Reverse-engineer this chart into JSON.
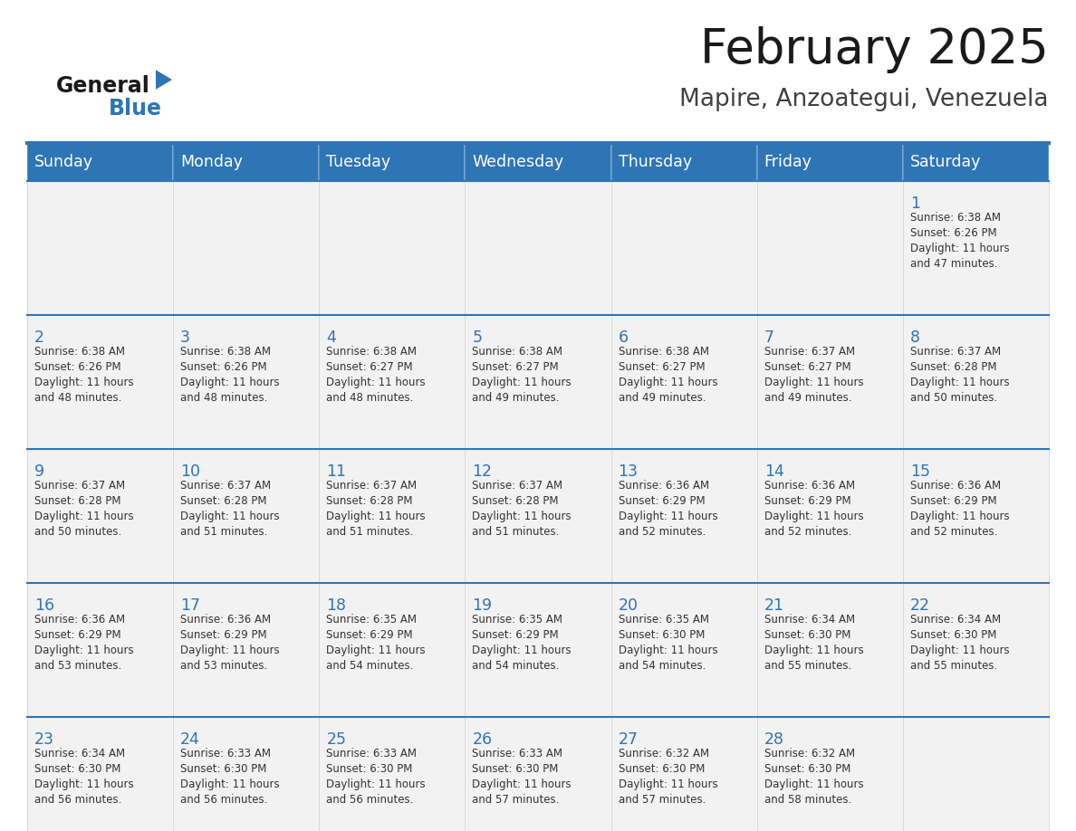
{
  "title": "February 2025",
  "subtitle": "Mapire, Anzoategui, Venezuela",
  "header_bg": "#2E75B6",
  "header_text_color": "#FFFFFF",
  "cell_bg": "#F2F2F2",
  "border_color": "#2E75B6",
  "day_headers": [
    "Sunday",
    "Monday",
    "Tuesday",
    "Wednesday",
    "Thursday",
    "Friday",
    "Saturday"
  ],
  "title_color": "#1a1a1a",
  "subtitle_color": "#404040",
  "day_number_color": "#2E75B6",
  "info_color": "#333333",
  "logo_general_color": "#1a1a1a",
  "logo_blue_color": "#2E75B6",
  "days": [
    {
      "day": 1,
      "col": 6,
      "row": 0,
      "sunrise": "6:38 AM",
      "sunset": "6:26 PM",
      "daylight_hours": 11,
      "daylight_minutes": 47
    },
    {
      "day": 2,
      "col": 0,
      "row": 1,
      "sunrise": "6:38 AM",
      "sunset": "6:26 PM",
      "daylight_hours": 11,
      "daylight_minutes": 48
    },
    {
      "day": 3,
      "col": 1,
      "row": 1,
      "sunrise": "6:38 AM",
      "sunset": "6:26 PM",
      "daylight_hours": 11,
      "daylight_minutes": 48
    },
    {
      "day": 4,
      "col": 2,
      "row": 1,
      "sunrise": "6:38 AM",
      "sunset": "6:27 PM",
      "daylight_hours": 11,
      "daylight_minutes": 48
    },
    {
      "day": 5,
      "col": 3,
      "row": 1,
      "sunrise": "6:38 AM",
      "sunset": "6:27 PM",
      "daylight_hours": 11,
      "daylight_minutes": 49
    },
    {
      "day": 6,
      "col": 4,
      "row": 1,
      "sunrise": "6:38 AM",
      "sunset": "6:27 PM",
      "daylight_hours": 11,
      "daylight_minutes": 49
    },
    {
      "day": 7,
      "col": 5,
      "row": 1,
      "sunrise": "6:37 AM",
      "sunset": "6:27 PM",
      "daylight_hours": 11,
      "daylight_minutes": 49
    },
    {
      "day": 8,
      "col": 6,
      "row": 1,
      "sunrise": "6:37 AM",
      "sunset": "6:28 PM",
      "daylight_hours": 11,
      "daylight_minutes": 50
    },
    {
      "day": 9,
      "col": 0,
      "row": 2,
      "sunrise": "6:37 AM",
      "sunset": "6:28 PM",
      "daylight_hours": 11,
      "daylight_minutes": 50
    },
    {
      "day": 10,
      "col": 1,
      "row": 2,
      "sunrise": "6:37 AM",
      "sunset": "6:28 PM",
      "daylight_hours": 11,
      "daylight_minutes": 51
    },
    {
      "day": 11,
      "col": 2,
      "row": 2,
      "sunrise": "6:37 AM",
      "sunset": "6:28 PM",
      "daylight_hours": 11,
      "daylight_minutes": 51
    },
    {
      "day": 12,
      "col": 3,
      "row": 2,
      "sunrise": "6:37 AM",
      "sunset": "6:28 PM",
      "daylight_hours": 11,
      "daylight_minutes": 51
    },
    {
      "day": 13,
      "col": 4,
      "row": 2,
      "sunrise": "6:36 AM",
      "sunset": "6:29 PM",
      "daylight_hours": 11,
      "daylight_minutes": 52
    },
    {
      "day": 14,
      "col": 5,
      "row": 2,
      "sunrise": "6:36 AM",
      "sunset": "6:29 PM",
      "daylight_hours": 11,
      "daylight_minutes": 52
    },
    {
      "day": 15,
      "col": 6,
      "row": 2,
      "sunrise": "6:36 AM",
      "sunset": "6:29 PM",
      "daylight_hours": 11,
      "daylight_minutes": 52
    },
    {
      "day": 16,
      "col": 0,
      "row": 3,
      "sunrise": "6:36 AM",
      "sunset": "6:29 PM",
      "daylight_hours": 11,
      "daylight_minutes": 53
    },
    {
      "day": 17,
      "col": 1,
      "row": 3,
      "sunrise": "6:36 AM",
      "sunset": "6:29 PM",
      "daylight_hours": 11,
      "daylight_minutes": 53
    },
    {
      "day": 18,
      "col": 2,
      "row": 3,
      "sunrise": "6:35 AM",
      "sunset": "6:29 PM",
      "daylight_hours": 11,
      "daylight_minutes": 54
    },
    {
      "day": 19,
      "col": 3,
      "row": 3,
      "sunrise": "6:35 AM",
      "sunset": "6:29 PM",
      "daylight_hours": 11,
      "daylight_minutes": 54
    },
    {
      "day": 20,
      "col": 4,
      "row": 3,
      "sunrise": "6:35 AM",
      "sunset": "6:30 PM",
      "daylight_hours": 11,
      "daylight_minutes": 54
    },
    {
      "day": 21,
      "col": 5,
      "row": 3,
      "sunrise": "6:34 AM",
      "sunset": "6:30 PM",
      "daylight_hours": 11,
      "daylight_minutes": 55
    },
    {
      "day": 22,
      "col": 6,
      "row": 3,
      "sunrise": "6:34 AM",
      "sunset": "6:30 PM",
      "daylight_hours": 11,
      "daylight_minutes": 55
    },
    {
      "day": 23,
      "col": 0,
      "row": 4,
      "sunrise": "6:34 AM",
      "sunset": "6:30 PM",
      "daylight_hours": 11,
      "daylight_minutes": 56
    },
    {
      "day": 24,
      "col": 1,
      "row": 4,
      "sunrise": "6:33 AM",
      "sunset": "6:30 PM",
      "daylight_hours": 11,
      "daylight_minutes": 56
    },
    {
      "day": 25,
      "col": 2,
      "row": 4,
      "sunrise": "6:33 AM",
      "sunset": "6:30 PM",
      "daylight_hours": 11,
      "daylight_minutes": 56
    },
    {
      "day": 26,
      "col": 3,
      "row": 4,
      "sunrise": "6:33 AM",
      "sunset": "6:30 PM",
      "daylight_hours": 11,
      "daylight_minutes": 57
    },
    {
      "day": 27,
      "col": 4,
      "row": 4,
      "sunrise": "6:32 AM",
      "sunset": "6:30 PM",
      "daylight_hours": 11,
      "daylight_minutes": 57
    },
    {
      "day": 28,
      "col": 5,
      "row": 4,
      "sunrise": "6:32 AM",
      "sunset": "6:30 PM",
      "daylight_hours": 11,
      "daylight_minutes": 58
    }
  ]
}
